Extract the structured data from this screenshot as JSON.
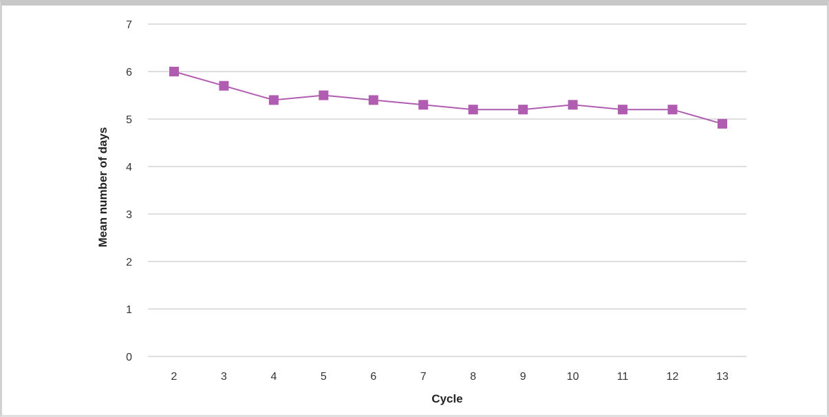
{
  "chart_data": {
    "type": "line",
    "title": "",
    "xlabel": "Cycle",
    "ylabel": "Mean number of days",
    "x": [
      2,
      3,
      4,
      5,
      6,
      7,
      8,
      9,
      10,
      11,
      12,
      13
    ],
    "series": [
      {
        "values": [
          6.0,
          5.7,
          5.4,
          5.5,
          5.4,
          5.3,
          5.2,
          5.2,
          5.3,
          5.2,
          5.2,
          4.9
        ],
        "color": "#b05cb0",
        "marker": "square"
      }
    ],
    "ylim": [
      0,
      7
    ],
    "yticks": [
      0,
      1,
      2,
      3,
      4,
      5,
      6,
      7
    ],
    "xticks": [
      "2",
      "3",
      "4",
      "5",
      "6",
      "7",
      "8",
      "9",
      "10",
      "11",
      "12",
      "13"
    ],
    "grid": "horizontal",
    "legend": "none"
  }
}
